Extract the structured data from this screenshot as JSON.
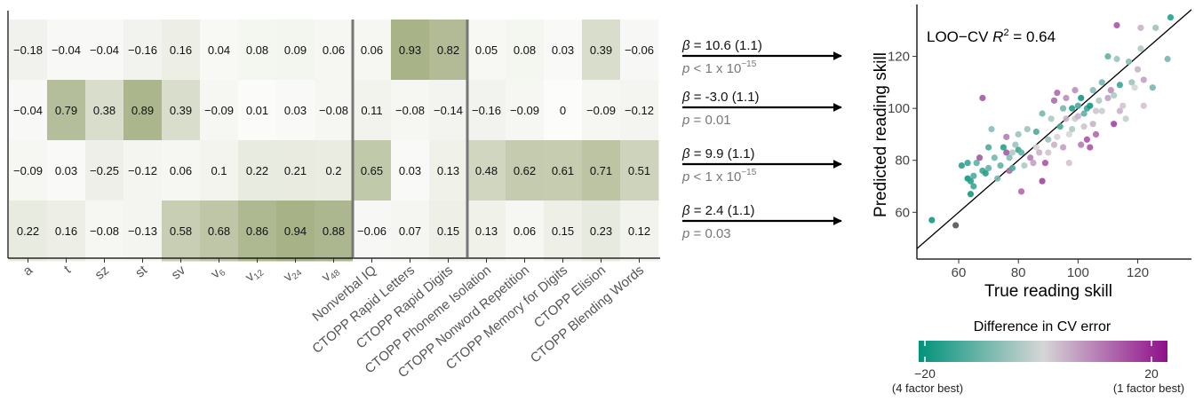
{
  "heatmap": {
    "columns": [
      "a",
      "t",
      "sz",
      "st",
      "sv",
      "v6",
      "v12",
      "v24",
      "v48",
      "Nonverbal IQ",
      "CTOPP Rapid Letters",
      "CTOPP Rapid Digits",
      "CTOPP Phoneme Isolation",
      "CTOPP Nonword Repetition",
      "CTOPP Memory for Digits",
      "CTOPP Elision",
      "CTOPP Blending Words"
    ],
    "column_labels_rendered": [
      {
        "main": "a"
      },
      {
        "main": "t"
      },
      {
        "main": "sz"
      },
      {
        "main": "st"
      },
      {
        "main": "sv"
      },
      {
        "main": "v",
        "sub": "6"
      },
      {
        "main": "v",
        "sub": "12"
      },
      {
        "main": "v",
        "sub": "24"
      },
      {
        "main": "v",
        "sub": "48"
      },
      {
        "main": "Nonverbal IQ"
      },
      {
        "main": "CTOPP Rapid Letters"
      },
      {
        "main": "CTOPP Rapid Digits"
      },
      {
        "main": "CTOPP Phoneme Isolation"
      },
      {
        "main": "CTOPP Nonword Repetition"
      },
      {
        "main": "CTOPP Memory for Digits"
      },
      {
        "main": "CTOPP Elision"
      },
      {
        "main": "CTOPP Blending Words"
      }
    ],
    "rows": [
      [
        "−0.18",
        "−0.04",
        "−0.04",
        "−0.16",
        "0.16",
        "0.04",
        "0.08",
        "0.09",
        "0.06",
        "0.06",
        "0.93",
        "0.82",
        "0.05",
        "0.08",
        "0.03",
        "0.39",
        "−0.06"
      ],
      [
        "−0.04",
        "0.79",
        "0.38",
        "0.89",
        "0.39",
        "−0.09",
        "0.01",
        "0.03",
        "−0.08",
        "0.11",
        "−0.08",
        "−0.14",
        "−0.16",
        "−0.09",
        "0",
        "−0.09",
        "−0.12"
      ],
      [
        "−0.09",
        "0.03",
        "−0.25",
        "−0.12",
        "0.06",
        "0.1",
        "0.22",
        "0.21",
        "0.2",
        "0.65",
        "0.03",
        "0.13",
        "0.48",
        "0.62",
        "0.61",
        "0.71",
        "0.51"
      ],
      [
        "0.22",
        "0.16",
        "−0.08",
        "−0.13",
        "0.58",
        "0.68",
        "0.86",
        "0.94",
        "0.88",
        "−0.06",
        "0.07",
        "0.15",
        "0.13",
        "0.06",
        "0.15",
        "0.23",
        "0.12"
      ]
    ],
    "color_high": "#8c9a62"
  },
  "regression_labels": [
    {
      "beta": "10.6 (1.1)",
      "p": "< 1 x 10",
      "p_exp": "−15"
    },
    {
      "beta": "-3.0 (1.1)",
      "p": "= 0.01",
      "p_exp": ""
    },
    {
      "beta": "9.9 (1.1)",
      "p": "< 1 x 10",
      "p_exp": "−15"
    },
    {
      "beta": "2.4 (1.1)",
      "p": "= 0.03",
      "p_exp": ""
    }
  ],
  "chart_data": {
    "type": "scatter",
    "title": "",
    "annotation": {
      "prefix": "LOO−CV ",
      "var": "R",
      "sup": "2",
      "suffix": " = 0.64"
    },
    "xlabel": "True reading skill",
    "ylabel": "Predicted reading skill",
    "xlim": [
      46,
      138
    ],
    "ylim": [
      42,
      140
    ],
    "xticks": [
      60,
      80,
      100,
      120
    ],
    "yticks": [
      60,
      80,
      100,
      120
    ],
    "identity_line": true,
    "points": [
      [
        51,
        57,
        -20
      ],
      [
        59,
        55,
        99
      ],
      [
        61,
        78,
        -18
      ],
      [
        63,
        79,
        -16
      ],
      [
        63,
        73,
        -20
      ],
      [
        64,
        72,
        -18
      ],
      [
        64,
        67,
        -20
      ],
      [
        65,
        70,
        -16
      ],
      [
        65,
        74,
        -14
      ],
      [
        66,
        79,
        -12
      ],
      [
        67,
        81,
        14
      ],
      [
        68,
        76,
        -16
      ],
      [
        68,
        104,
        14
      ],
      [
        69,
        75,
        -18
      ],
      [
        70,
        77,
        -12
      ],
      [
        70,
        85,
        -14
      ],
      [
        71,
        92,
        -8
      ],
      [
        72,
        81,
        -10
      ],
      [
        73,
        73,
        -10
      ],
      [
        74,
        78,
        -12
      ],
      [
        75,
        85,
        -18
      ],
      [
        76,
        83,
        14
      ],
      [
        76,
        89,
        10
      ],
      [
        77,
        76,
        12
      ],
      [
        77,
        81,
        -8
      ],
      [
        78,
        77,
        -14
      ],
      [
        78,
        83,
        -4
      ],
      [
        79,
        86,
        -6
      ],
      [
        80,
        84,
        -16
      ],
      [
        80,
        90,
        -6
      ],
      [
        81,
        83,
        -12
      ],
      [
        81,
        68,
        12
      ],
      [
        82,
        78,
        -4
      ],
      [
        83,
        92,
        -6
      ],
      [
        84,
        81,
        10
      ],
      [
        85,
        79,
        6
      ],
      [
        86,
        85,
        0
      ],
      [
        86,
        91,
        -14
      ],
      [
        87,
        83,
        4
      ],
      [
        88,
        72,
        16
      ],
      [
        88,
        98,
        -10
      ],
      [
        89,
        79,
        14
      ],
      [
        90,
        83,
        2
      ],
      [
        90,
        88,
        -6
      ],
      [
        91,
        96,
        -4
      ],
      [
        92,
        86,
        4
      ],
      [
        92,
        103,
        12
      ],
      [
        93,
        89,
        0
      ],
      [
        93,
        106,
        12
      ],
      [
        94,
        93,
        -14
      ],
      [
        95,
        100,
        -10
      ],
      [
        95,
        85,
        6
      ],
      [
        96,
        96,
        4
      ],
      [
        96,
        104,
        8
      ],
      [
        97,
        90,
        0
      ],
      [
        97,
        79,
        2
      ],
      [
        98,
        100,
        -18
      ],
      [
        98,
        92,
        -4
      ],
      [
        99,
        107,
        8
      ],
      [
        99,
        96,
        -2
      ],
      [
        100,
        101,
        -14
      ],
      [
        100,
        97,
        4
      ],
      [
        101,
        104,
        -20
      ],
      [
        101,
        86,
        10
      ],
      [
        102,
        98,
        -12
      ],
      [
        102,
        93,
        2
      ],
      [
        103,
        100,
        -16
      ],
      [
        103,
        88,
        14
      ],
      [
        104,
        101,
        -20
      ],
      [
        104,
        85,
        14
      ],
      [
        105,
        94,
        4
      ],
      [
        105,
        107,
        -8
      ],
      [
        106,
        90,
        12
      ],
      [
        106,
        99,
        2
      ],
      [
        107,
        103,
        -4
      ],
      [
        108,
        99,
        -2
      ],
      [
        108,
        110,
        -10
      ],
      [
        110,
        104,
        6
      ],
      [
        110,
        120,
        -12
      ],
      [
        111,
        107,
        8
      ],
      [
        112,
        105,
        -4
      ],
      [
        112,
        94,
        16
      ],
      [
        113,
        132,
        14
      ],
      [
        113,
        119,
        -6
      ],
      [
        114,
        99,
        4
      ],
      [
        114,
        109,
        -16
      ],
      [
        115,
        101,
        2
      ],
      [
        116,
        96,
        -2
      ],
      [
        117,
        118,
        -8
      ],
      [
        118,
        110,
        -6
      ],
      [
        119,
        108,
        0
      ],
      [
        120,
        115,
        4
      ],
      [
        121,
        131,
        4
      ],
      [
        121,
        123,
        -4
      ],
      [
        122,
        111,
        6
      ],
      [
        122,
        101,
        2
      ],
      [
        125,
        108,
        -10
      ],
      [
        126,
        131,
        -6
      ],
      [
        130,
        119,
        -10
      ],
      [
        131,
        135,
        -18
      ]
    ]
  },
  "colorbar": {
    "title": "Difference in CV error",
    "low_color": "#00937a",
    "mid_color": "#d6d6d6",
    "high_color": "#8f0f8b",
    "min": -22,
    "max": 22,
    "tick_left": "−20",
    "tick_right": "20",
    "caption_left": "(4 factor best)",
    "caption_right": "(1 factor best)"
  }
}
